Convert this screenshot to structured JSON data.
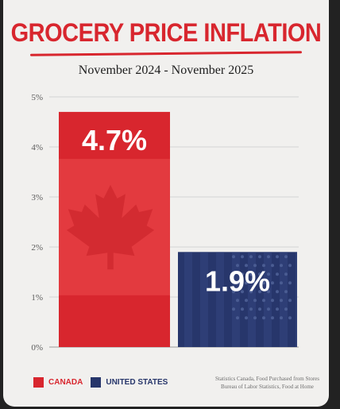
{
  "title": "GROCERY PRICE INFLATION",
  "subtitle": "November 2024 - November 2025",
  "colors": {
    "canada": "#d8262e",
    "us": "#27366b",
    "title": "#d8262e"
  },
  "legend": [
    {
      "label": "CANADA",
      "color": "#d8262e"
    },
    {
      "label": "UNITED STATES",
      "color": "#27366b"
    }
  ],
  "source": {
    "line1": "Statistics Canada, Food Purchased from Stores",
    "line2": "Bureau of Labor Statistics, Food at Home"
  },
  "chart_data": {
    "type": "bar",
    "title": "GROCERY PRICE INFLATION",
    "subtitle": "November 2024 - November 2025",
    "categories": [
      "CANADA",
      "UNITED STATES"
    ],
    "values": [
      4.7,
      1.9
    ],
    "value_labels": [
      "4.7%",
      "1.9%"
    ],
    "ylim": [
      0,
      5
    ],
    "yticks": [
      0,
      1,
      2,
      3,
      4,
      5
    ],
    "ytick_labels": [
      "0%",
      "1%",
      "2%",
      "3%",
      "4%",
      "5%"
    ],
    "grid": true,
    "legend_position": "bottom-left"
  }
}
